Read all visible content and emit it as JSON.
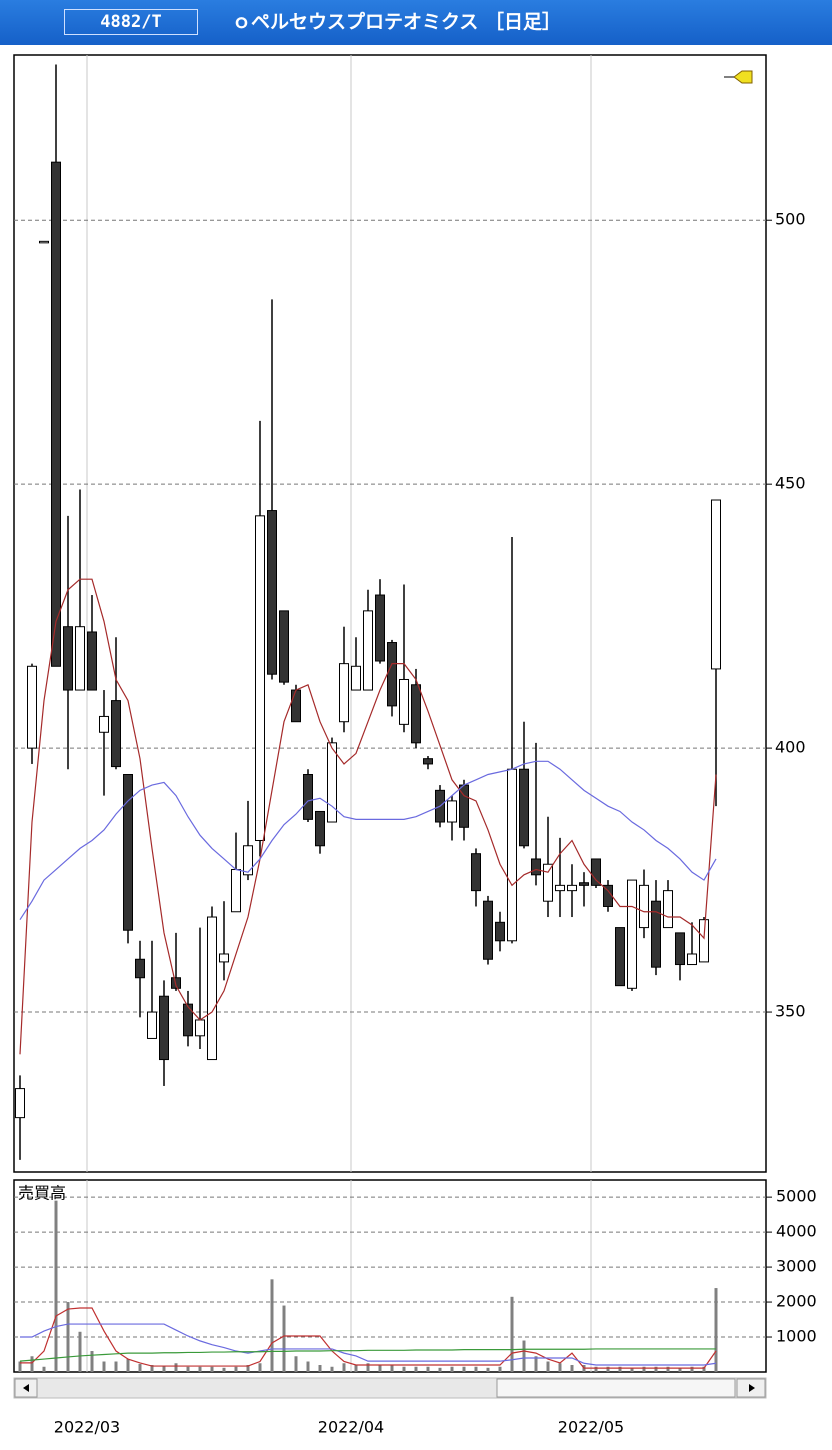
{
  "header": {
    "ticker": "4882/T",
    "title": "ｏペルセウスプロテオミクス ［日足］"
  },
  "chart_data": [
    {
      "type": "candlestick",
      "categories": [
        null,
        null,
        null,
        null,
        null,
        null,
        "2022/03",
        null,
        null,
        null,
        null,
        null,
        null,
        null,
        null,
        null,
        null,
        null,
        null,
        null,
        null,
        null,
        null,
        null,
        null,
        null,
        null,
        null,
        "2022/04",
        null,
        null,
        null,
        null,
        null,
        null,
        null,
        null,
        null,
        null,
        null,
        null,
        null,
        null,
        null,
        null,
        null,
        null,
        null,
        "2022/05",
        null,
        null,
        null,
        null,
        null,
        null,
        null,
        null,
        null,
        null
      ],
      "open": [
        330,
        400,
        496,
        511,
        423,
        411,
        422,
        403,
        409,
        395,
        360,
        345,
        353,
        356.5,
        351.5,
        345.5,
        341,
        359.5,
        369,
        376,
        382.5,
        445,
        426,
        411,
        395,
        388,
        386,
        405,
        411,
        411,
        429,
        420,
        404.5,
        412,
        398,
        392,
        386,
        393,
        380,
        371,
        367,
        363.5,
        396,
        379,
        371,
        373,
        373,
        374.5,
        379,
        374,
        366,
        354.5,
        366,
        371,
        366,
        365,
        359,
        359.5,
        415
      ],
      "high": [
        338,
        416,
        496,
        529.5,
        444,
        449,
        429,
        411,
        421,
        395,
        363.5,
        363.5,
        356,
        365,
        354,
        366,
        370,
        371,
        384,
        390,
        462,
        485,
        426,
        412,
        396,
        388,
        402,
        423,
        421,
        430,
        432,
        420.5,
        431,
        415,
        398.5,
        393,
        391,
        394,
        381,
        372,
        369,
        440,
        405,
        401,
        387,
        383,
        378,
        376.5,
        379,
        375,
        366,
        375,
        377,
        375,
        375,
        365,
        367,
        368,
        447
      ],
      "low": [
        322,
        397,
        496,
        415.5,
        396,
        411,
        411,
        391,
        396,
        363,
        349,
        345,
        336,
        354,
        343.5,
        343,
        341,
        356,
        369,
        375,
        379.5,
        413,
        412,
        405,
        386,
        380,
        386,
        403,
        411,
        411,
        416,
        406,
        403,
        400,
        396,
        385,
        382.5,
        382.5,
        370,
        359,
        361.5,
        363,
        381,
        374,
        368,
        368,
        368,
        370,
        373.5,
        369,
        355,
        354,
        364,
        357,
        366,
        356,
        359,
        359.5,
        389
      ],
      "close": [
        335.5,
        415.5,
        496,
        415.5,
        411,
        423,
        411,
        406,
        396.5,
        365.5,
        356.5,
        350,
        341,
        354.5,
        345.5,
        348.5,
        368,
        361,
        377,
        381.5,
        444,
        414,
        412.5,
        405,
        386.5,
        381.5,
        401,
        416,
        415.5,
        426,
        416.5,
        408,
        413,
        401,
        397,
        386,
        390,
        385,
        373,
        360,
        363.5,
        396,
        381.5,
        376,
        378,
        374,
        374,
        374,
        374,
        370,
        355,
        375,
        374,
        358.5,
        373,
        359,
        361,
        367.5,
        447
      ],
      "up_color": "#ffffff",
      "down_color": "#333333",
      "lines": [
        {
          "color": "#a52a2a",
          "values": [
            342,
            386,
            409,
            424,
            430,
            432,
            432,
            424,
            413,
            409,
            398,
            381,
            365,
            355,
            351,
            348.5,
            350,
            354,
            361,
            368,
            379,
            392,
            405,
            411,
            412,
            405,
            400,
            397,
            399,
            405,
            411,
            416,
            416,
            413,
            407,
            400.5,
            394,
            391,
            390,
            384.5,
            378,
            374,
            376,
            377,
            376.5,
            380,
            382.5,
            378,
            375,
            373,
            370,
            370,
            369,
            369,
            368,
            368,
            366.5,
            364,
            395
          ]
        },
        {
          "color": "#6a6adf",
          "values": [
            367.5,
            371,
            375,
            377,
            379,
            381,
            382.5,
            384.5,
            387.5,
            390,
            392,
            393,
            393.5,
            391,
            387,
            383.5,
            381,
            379,
            377,
            376.5,
            379,
            382.5,
            385.5,
            387.5,
            390,
            390.5,
            389,
            387,
            386.5,
            386.5,
            386.5,
            386.5,
            386.5,
            387,
            388,
            389,
            391,
            393,
            394,
            395,
            395.5,
            396,
            397,
            397.5,
            397.5,
            396,
            394,
            392,
            390.5,
            389,
            388,
            386,
            384.5,
            382.5,
            381,
            379,
            376.5,
            375,
            379
          ]
        }
      ],
      "ylim": [
        319.7,
        531.3
      ],
      "yticks": [
        350,
        400,
        450,
        500
      ],
      "grid": true
    },
    {
      "type": "bar",
      "title": "売買高",
      "color": "#808080",
      "values": [
        300,
        450,
        150,
        4900,
        2000,
        1150,
        600,
        300,
        300,
        370,
        230,
        200,
        180,
        250,
        150,
        150,
        150,
        120,
        150,
        200,
        250,
        2650,
        1900,
        450,
        300,
        200,
        150,
        250,
        200,
        250,
        200,
        200,
        150,
        150,
        150,
        120,
        150,
        150,
        150,
        120,
        150,
        2150,
        900,
        450,
        300,
        250,
        200,
        200,
        150,
        150,
        150,
        120,
        150,
        150,
        150,
        120,
        150,
        150,
        2400
      ],
      "lines": [
        {
          "color": "#c03030",
          "values": [
            260,
            260,
            600,
            1600,
            1800,
            1830,
            1830,
            1170,
            600,
            370,
            260,
            170,
            170,
            170,
            170,
            170,
            170,
            170,
            170,
            170,
            300,
            830,
            1030,
            1030,
            1030,
            1030,
            600,
            300,
            200,
            200,
            200,
            200,
            200,
            200,
            200,
            200,
            200,
            200,
            200,
            200,
            200,
            540,
            600,
            540,
            370,
            260,
            540,
            110,
            110,
            110,
            110,
            110,
            110,
            110,
            110,
            110,
            110,
            110,
            600
          ]
        },
        {
          "color": "#6a6adf",
          "values": [
            1000,
            1000,
            1170,
            1300,
            1370,
            1370,
            1370,
            1370,
            1370,
            1370,
            1370,
            1370,
            1370,
            1200,
            1030,
            890,
            780,
            700,
            600,
            540,
            600,
            660,
            660,
            660,
            660,
            660,
            660,
            540,
            460,
            310,
            310,
            310,
            310,
            310,
            310,
            310,
            310,
            310,
            310,
            310,
            310,
            350,
            400,
            400,
            400,
            400,
            400,
            250,
            200,
            200,
            200,
            200,
            200,
            200,
            200,
            200,
            200,
            200,
            250
          ]
        },
        {
          "color": "#3a9a3a",
          "values": [
            310,
            340,
            370,
            400,
            430,
            460,
            480,
            500,
            520,
            540,
            540,
            540,
            550,
            550,
            560,
            560,
            570,
            570,
            580,
            580,
            580,
            590,
            590,
            600,
            600,
            600,
            610,
            610,
            610,
            620,
            620,
            620,
            620,
            630,
            630,
            630,
            630,
            640,
            640,
            640,
            640,
            640,
            650,
            650,
            650,
            650,
            650,
            650,
            660,
            660,
            660,
            660,
            660,
            660,
            660,
            660,
            660,
            660,
            660
          ]
        }
      ],
      "ylim": [
        0,
        5490
      ],
      "yticks": [
        1000,
        2000,
        3000,
        4000,
        5000
      ],
      "grid": true
    }
  ]
}
